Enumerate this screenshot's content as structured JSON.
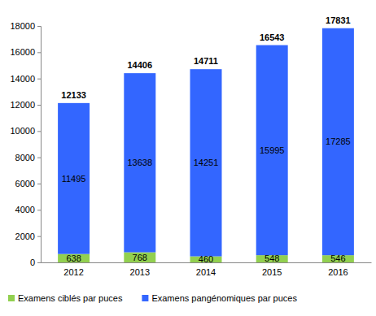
{
  "chart_data": {
    "type": "bar",
    "stacked": true,
    "data_labels": true,
    "grid": false,
    "legend": "bottom",
    "categories": [
      "2012",
      "2013",
      "2014",
      "2015",
      "2016"
    ],
    "series": [
      {
        "name": "Examens ciblés par puces",
        "color": "#92d050",
        "values": [
          638,
          768,
          460,
          548,
          546
        ]
      },
      {
        "name": "Examens pangénomiques par puces",
        "color": "#3366ff",
        "values": [
          11495,
          13638,
          14251,
          15995,
          17285
        ]
      }
    ],
    "totals": [
      12133,
      14406,
      14711,
      16543,
      17831
    ],
    "ylim": [
      0,
      18000
    ],
    "yticks": [
      0,
      2000,
      4000,
      6000,
      8000,
      10000,
      12000,
      14000,
      16000,
      18000
    ]
  }
}
